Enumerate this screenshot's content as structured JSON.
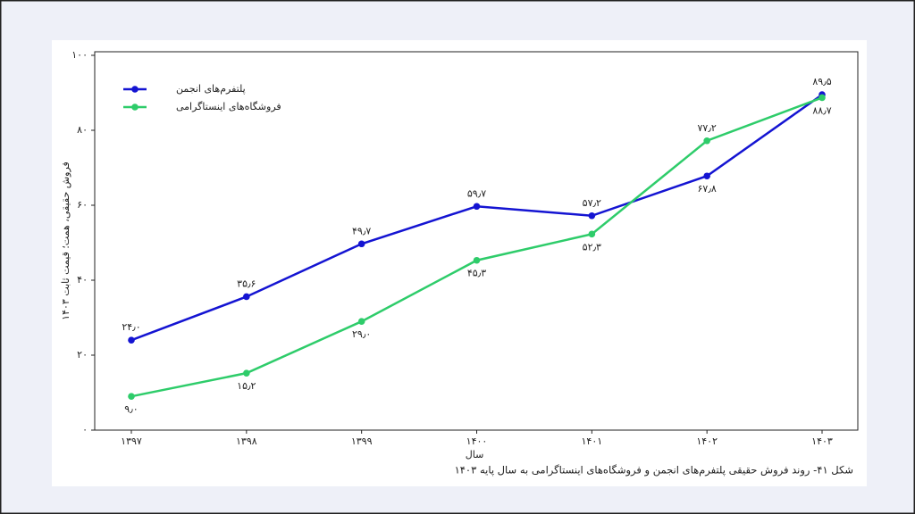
{
  "chart_data": {
    "type": "line",
    "caption": "شکل ۴۱- روند فروش حقیقی پلتفرم‌های انجمن و فروشگاه‌های اینستاگرامی به سال پایه ۱۴۰۳",
    "x_label": "سال",
    "y_label": "فروش حقیقی، همت؛ قیمت ثابت ۱۴۰۳",
    "categories": [
      "۱۳۹۷",
      "۱۳۹۸",
      "۱۳۹۹",
      "۱۴۰۰",
      "۱۴۰۱",
      "۱۴۰۲",
      "۱۴۰۳"
    ],
    "series": [
      {
        "name": "پلتفرم‌های انجمن",
        "color": "#1414d2",
        "values": [
          24.0,
          35.6,
          49.7,
          59.7,
          57.2,
          67.8,
          89.5
        ],
        "value_labels": [
          "۲۴٫۰",
          "۳۵٫۶",
          "۴۹٫۷",
          "۵۹٫۷",
          "۵۷٫۲",
          "۶۷٫۸",
          "۸۹٫۵"
        ]
      },
      {
        "name": "فروشگاه‌های اینستاگرامی",
        "color": "#2ecc6a",
        "values": [
          9.0,
          15.2,
          29.0,
          45.3,
          52.3,
          77.2,
          88.7
        ],
        "value_labels": [
          "۹٫۰",
          "۱۵٫۲",
          "۲۹٫۰",
          "۴۵٫۳",
          "۵۲٫۳",
          "۷۷٫۲",
          "۸۸٫۷"
        ]
      }
    ],
    "ylim": [
      0,
      100
    ],
    "yticks": [
      {
        "value": 0,
        "label": "۰"
      },
      {
        "value": 20,
        "label": "۲۰"
      },
      {
        "value": 40,
        "label": "۴۰"
      },
      {
        "value": 60,
        "label": "۶۰"
      },
      {
        "value": 80,
        "label": "۸۰"
      },
      {
        "value": 100,
        "label": "۱۰۰"
      }
    ],
    "legend": "upper-left",
    "grid": false
  }
}
